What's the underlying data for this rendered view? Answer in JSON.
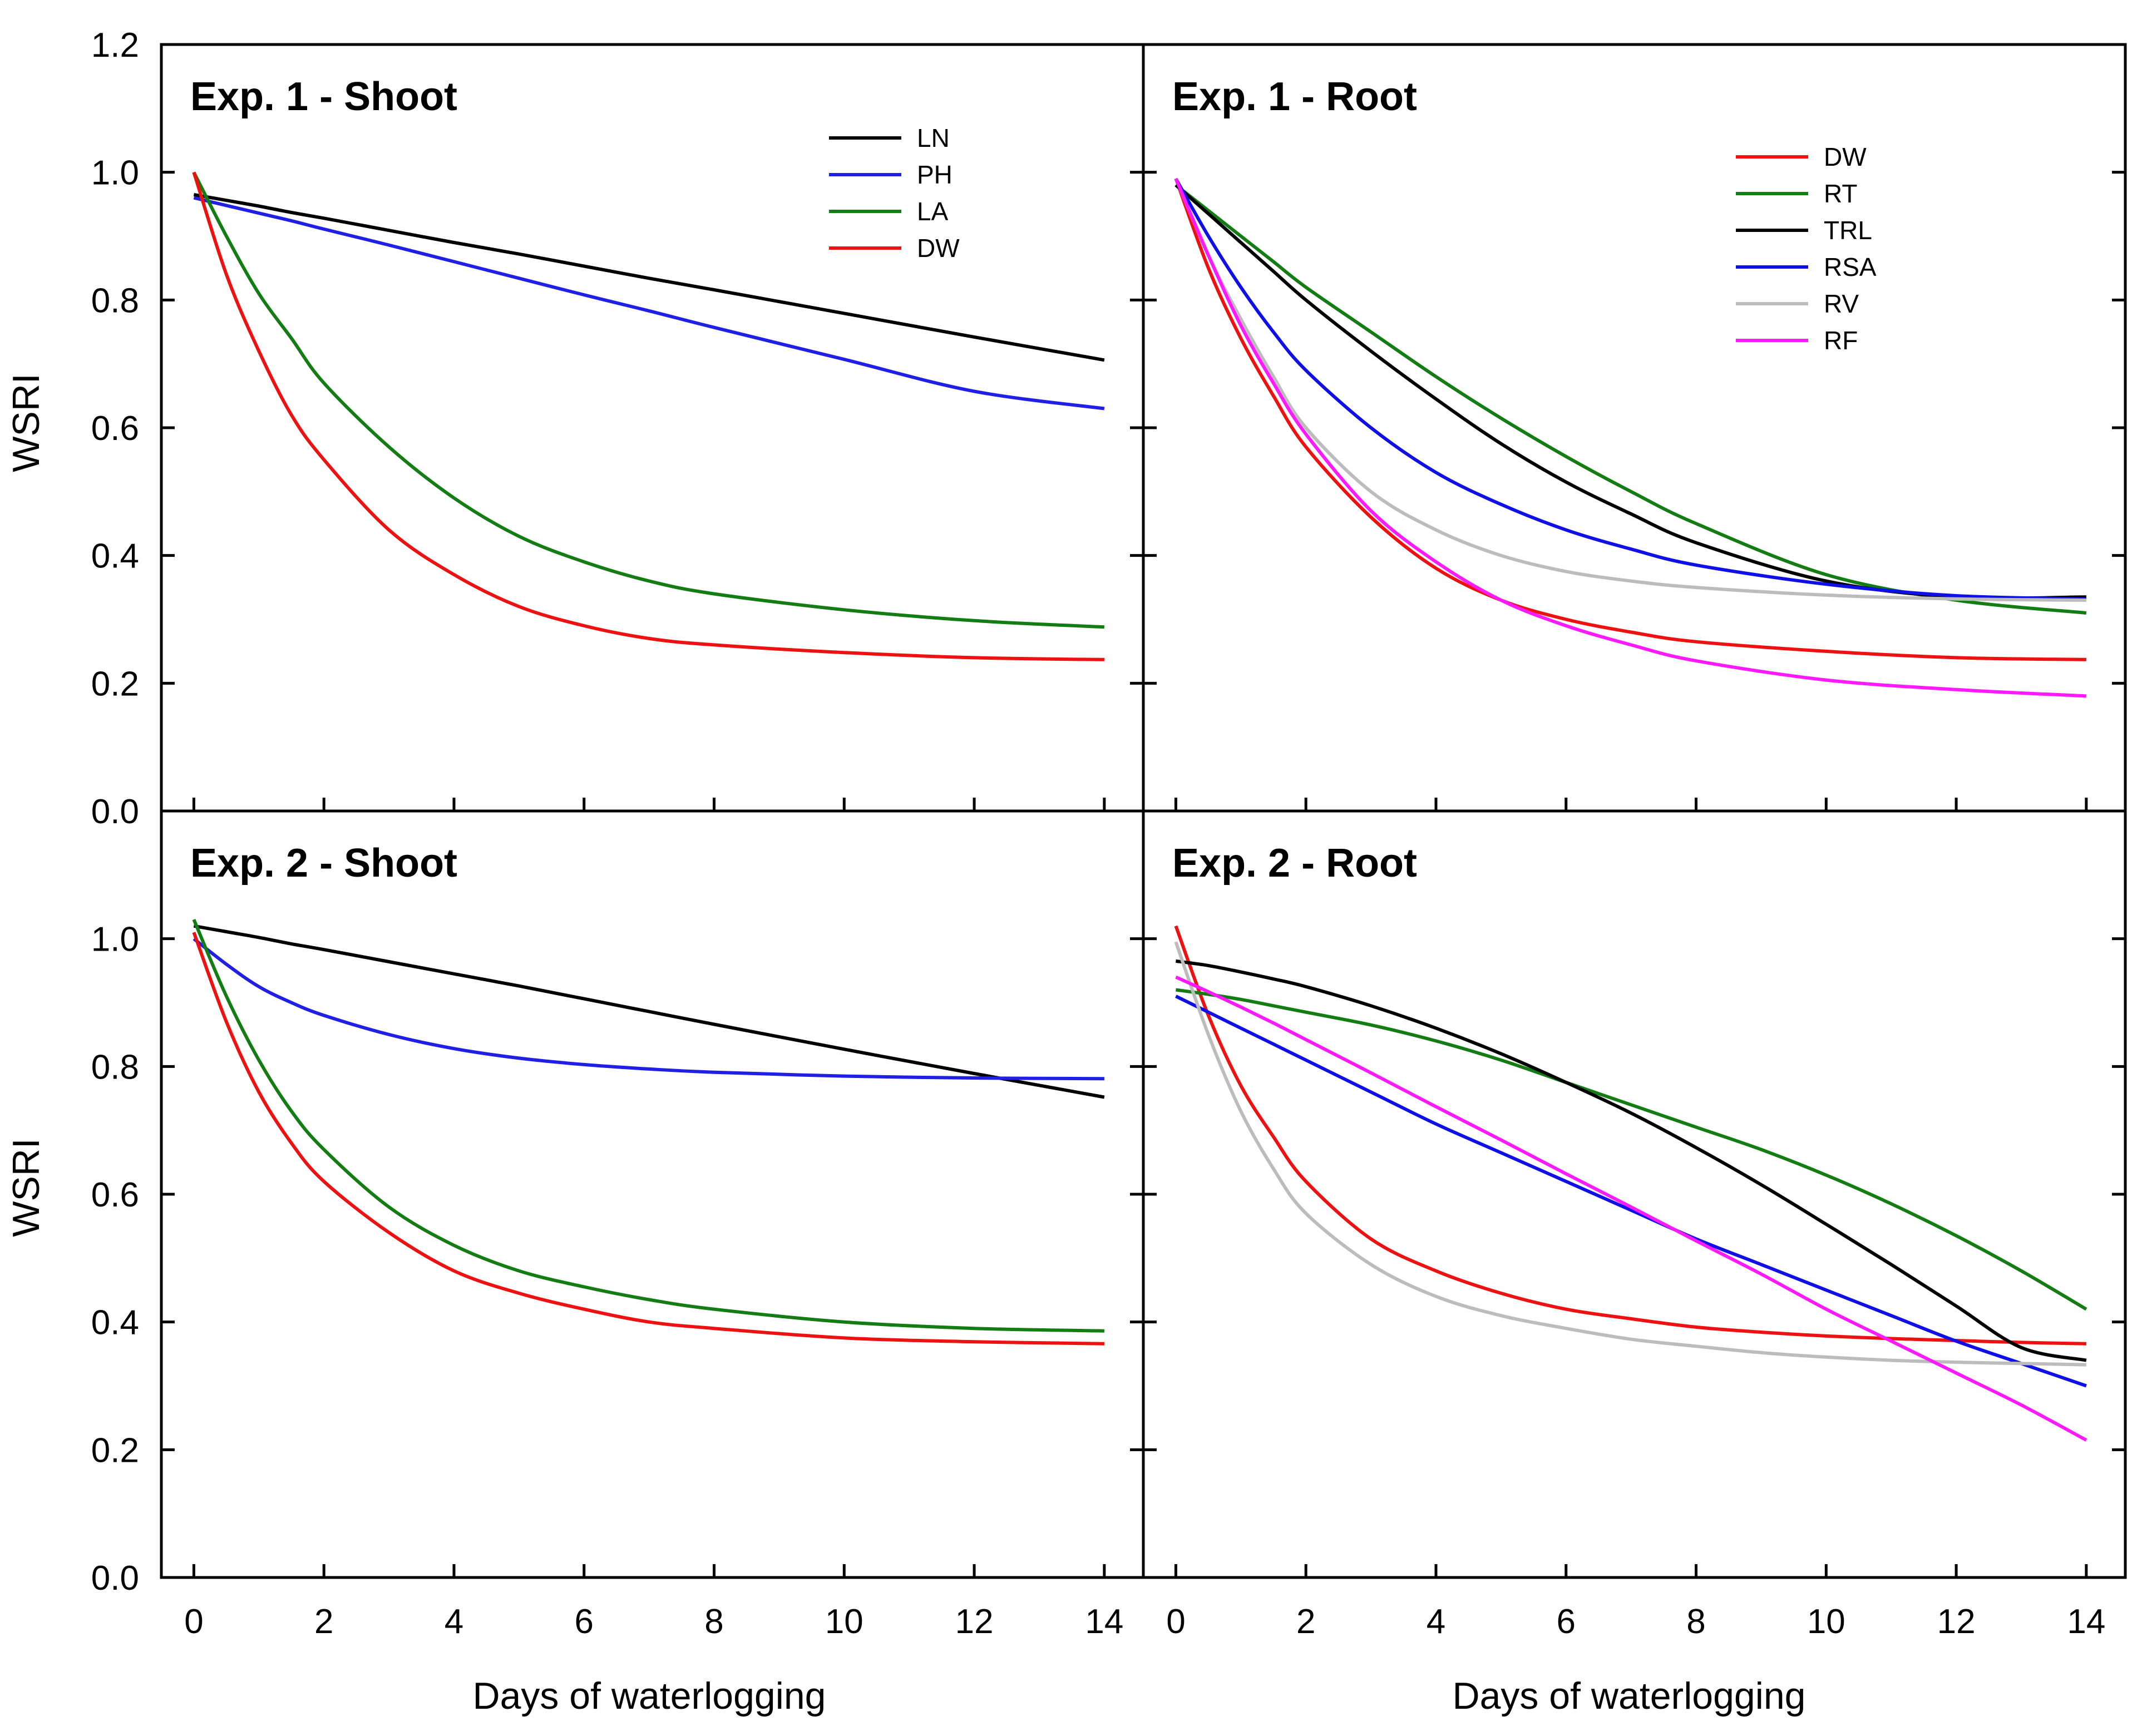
{
  "figure": {
    "xlabel": "Days of waterlogging",
    "ylabel": "WSRI"
  },
  "chart_data": [
    {
      "type": "line",
      "title": "Exp. 1 - Shoot",
      "xlabel": "",
      "ylabel": "WSRI",
      "xlim": [
        -0.5,
        14.6
      ],
      "ylim": [
        0,
        1.2
      ],
      "xticks": [
        "",
        "",
        "",
        "",
        "",
        "",
        "",
        ""
      ],
      "yticks": [
        "0.0",
        "0.2",
        "0.4",
        "0.6",
        "0.8",
        "1.0",
        "1.2"
      ],
      "legend_position": "top-right",
      "x": [
        0,
        0.5,
        1,
        1.5,
        2,
        3,
        4,
        5,
        6,
        7,
        8,
        10,
        12,
        14
      ],
      "series": [
        {
          "name": "LN",
          "color": "#000000",
          "values": [
            0.965,
            0.956,
            0.947,
            0.937,
            0.928,
            0.909,
            0.89,
            0.872,
            0.853,
            0.834,
            0.816,
            0.779,
            0.742,
            0.706
          ]
        },
        {
          "name": "PH",
          "color": "#1f1fe6",
          "values": [
            0.96,
            0.948,
            0.936,
            0.924,
            0.911,
            0.886,
            0.86,
            0.834,
            0.808,
            0.783,
            0.757,
            0.707,
            0.657,
            0.63
          ]
        },
        {
          "name": "LA",
          "color": "#137c13",
          "values": [
            1.0,
            0.9,
            0.81,
            0.74,
            0.67,
            0.57,
            0.49,
            0.43,
            0.39,
            0.36,
            0.34,
            0.315,
            0.298,
            0.288
          ]
        },
        {
          "name": "DW",
          "color": "#ee1111",
          "values": [
            1.0,
            0.84,
            0.72,
            0.62,
            0.55,
            0.44,
            0.37,
            0.32,
            0.29,
            0.27,
            0.26,
            0.248,
            0.24,
            0.237
          ]
        }
      ]
    },
    {
      "type": "line",
      "title": "Exp. 1 - Root",
      "xlabel": "",
      "ylabel": "",
      "xlim": [
        -0.5,
        14.6
      ],
      "ylim": [
        0,
        1.2
      ],
      "xticks": [
        "",
        "",
        "",
        "",
        "",
        "",
        "",
        ""
      ],
      "yticks": [],
      "legend_position": "top-right",
      "x": [
        0,
        0.5,
        1,
        1.5,
        2,
        3,
        4,
        5,
        6,
        7,
        8,
        10,
        12,
        14
      ],
      "series": [
        {
          "name": "DW",
          "color": "#ee1111",
          "values": [
            0.99,
            0.85,
            0.74,
            0.65,
            0.57,
            0.46,
            0.38,
            0.33,
            0.3,
            0.28,
            0.265,
            0.25,
            0.24,
            0.237
          ]
        },
        {
          "name": "RT",
          "color": "#137c13",
          "values": [
            0.98,
            0.94,
            0.9,
            0.86,
            0.82,
            0.75,
            0.68,
            0.615,
            0.555,
            0.5,
            0.45,
            0.37,
            0.33,
            0.31
          ]
        },
        {
          "name": "TRL",
          "color": "#000000",
          "values": [
            0.98,
            0.935,
            0.89,
            0.845,
            0.8,
            0.72,
            0.645,
            0.575,
            0.515,
            0.465,
            0.42,
            0.36,
            0.335,
            0.335
          ]
        },
        {
          "name": "RSA",
          "color": "#0f0fe8",
          "values": [
            0.99,
            0.9,
            0.82,
            0.75,
            0.69,
            0.6,
            0.53,
            0.48,
            0.44,
            0.41,
            0.385,
            0.355,
            0.337,
            0.332
          ]
        },
        {
          "name": "RV",
          "color": "#bcbcbc",
          "values": [
            0.99,
            0.87,
            0.77,
            0.68,
            0.6,
            0.5,
            0.44,
            0.4,
            0.375,
            0.36,
            0.35,
            0.338,
            0.332,
            0.33
          ]
        },
        {
          "name": "RF",
          "color": "#ff19ff",
          "values": [
            0.99,
            0.87,
            0.76,
            0.67,
            0.59,
            0.47,
            0.39,
            0.33,
            0.29,
            0.26,
            0.235,
            0.205,
            0.19,
            0.18
          ]
        }
      ]
    },
    {
      "type": "line",
      "title": "Exp. 2 - Shoot",
      "xlabel": "Days of waterlogging",
      "ylabel": "WSRI",
      "xlim": [
        -0.5,
        14.6
      ],
      "ylim": [
        0,
        1.2
      ],
      "xticks": [
        "0",
        "2",
        "4",
        "6",
        "8",
        "10",
        "12",
        "14"
      ],
      "yticks": [
        "0.0",
        "0.2",
        "0.4",
        "0.6",
        "0.8",
        "1.0",
        ""
      ],
      "legend_position": "none",
      "x": [
        0,
        0.5,
        1,
        1.5,
        2,
        3,
        4,
        5,
        6,
        7,
        8,
        10,
        12,
        14
      ],
      "series": [
        {
          "name": "LN",
          "color": "#000000",
          "values": [
            1.02,
            1.011,
            1.002,
            0.992,
            0.983,
            0.964,
            0.945,
            0.926,
            0.906,
            0.886,
            0.866,
            0.827,
            0.789,
            0.752
          ]
        },
        {
          "name": "PH",
          "color": "#1f1fe6",
          "values": [
            1.0,
            0.96,
            0.925,
            0.9,
            0.88,
            0.85,
            0.828,
            0.813,
            0.803,
            0.796,
            0.791,
            0.785,
            0.782,
            0.781
          ]
        },
        {
          "name": "LA",
          "color": "#137c13",
          "values": [
            1.03,
            0.91,
            0.81,
            0.73,
            0.67,
            0.58,
            0.52,
            0.48,
            0.455,
            0.435,
            0.42,
            0.4,
            0.39,
            0.386
          ]
        },
        {
          "name": "DW",
          "color": "#ee1111",
          "values": [
            1.01,
            0.87,
            0.76,
            0.68,
            0.62,
            0.54,
            0.48,
            0.445,
            0.42,
            0.4,
            0.39,
            0.375,
            0.369,
            0.366
          ]
        }
      ]
    },
    {
      "type": "line",
      "title": "Exp. 2 - Root",
      "xlabel": "Days of waterlogging",
      "ylabel": "",
      "xlim": [
        -0.5,
        14.6
      ],
      "ylim": [
        0,
        1.2
      ],
      "xticks": [
        "0",
        "2",
        "4",
        "6",
        "8",
        "10",
        "12",
        "14"
      ],
      "yticks": [],
      "legend_position": "none",
      "x": [
        0,
        0.5,
        1,
        1.5,
        2,
        3,
        4,
        5,
        6,
        7,
        8,
        9,
        10,
        11,
        12,
        13,
        14
      ],
      "series": [
        {
          "name": "DW",
          "color": "#ee1111",
          "values": [
            1.02,
            0.88,
            0.77,
            0.69,
            0.62,
            0.53,
            0.48,
            0.445,
            0.42,
            0.405,
            0.392,
            0.384,
            0.378,
            0.374,
            0.371,
            0.368,
            0.366
          ]
        },
        {
          "name": "RT",
          "color": "#137c13",
          "values": [
            0.92,
            0.913,
            0.905,
            0.895,
            0.885,
            0.865,
            0.84,
            0.81,
            0.775,
            0.74,
            0.705,
            0.67,
            0.63,
            0.585,
            0.535,
            0.48,
            0.42
          ]
        },
        {
          "name": "TRL",
          "color": "#000000",
          "values": [
            0.965,
            0.958,
            0.948,
            0.937,
            0.925,
            0.895,
            0.86,
            0.82,
            0.775,
            0.727,
            0.673,
            0.615,
            0.553,
            0.49,
            0.425,
            0.36,
            0.34
          ]
        },
        {
          "name": "RSA",
          "color": "#0f0fe8",
          "values": [
            0.91,
            0.885,
            0.86,
            0.835,
            0.81,
            0.76,
            0.71,
            0.665,
            0.62,
            0.575,
            0.53,
            0.49,
            0.45,
            0.41,
            0.37,
            0.335,
            0.3
          ]
        },
        {
          "name": "RV",
          "color": "#bcbcbc",
          "values": [
            0.995,
            0.85,
            0.73,
            0.64,
            0.57,
            0.49,
            0.44,
            0.41,
            0.39,
            0.373,
            0.362,
            0.352,
            0.345,
            0.34,
            0.337,
            0.335,
            0.333
          ]
        },
        {
          "name": "RF",
          "color": "#ff19ff",
          "values": [
            0.94,
            0.917,
            0.893,
            0.868,
            0.842,
            0.79,
            0.737,
            0.685,
            0.632,
            0.58,
            0.527,
            0.475,
            0.42,
            0.37,
            0.32,
            0.27,
            0.215
          ]
        }
      ]
    }
  ]
}
